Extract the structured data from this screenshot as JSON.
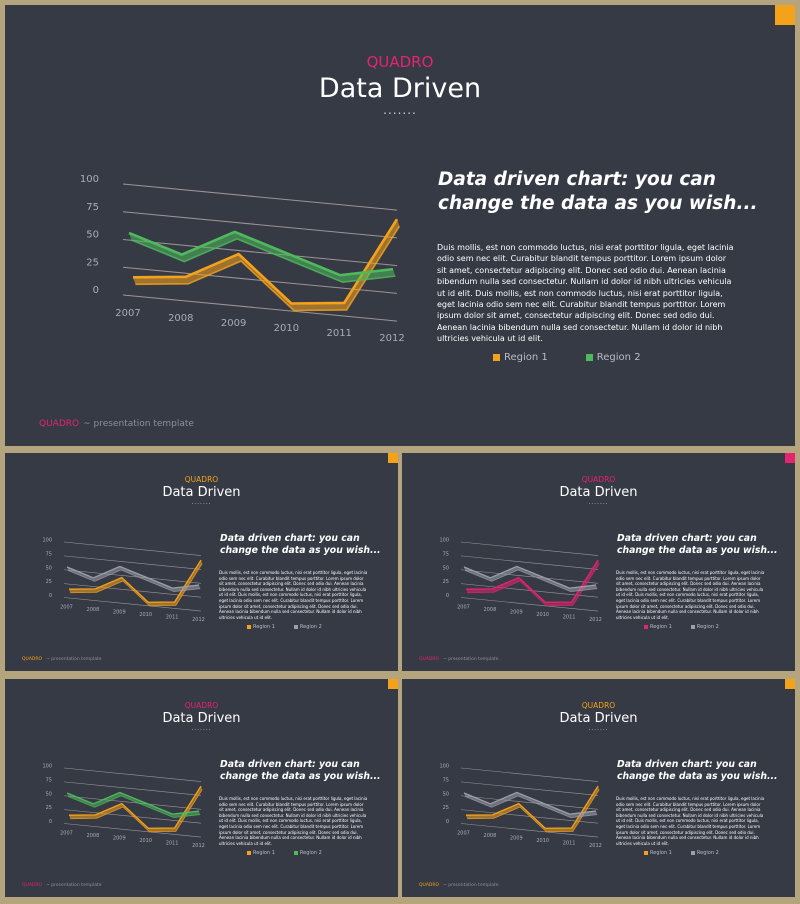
{
  "colors": {
    "background": "#b4a57f",
    "slide_bg": "#363a45",
    "orange": "#f5a21b",
    "green": "#4fba5c",
    "pink": "#e6236f",
    "grey": "#9c9fa7",
    "axis": "#c9b9b9"
  },
  "main_slide": {
    "brand": "QUADRO",
    "title": "Data Driven",
    "dots": ".......",
    "heading": "Data driven chart: you can change the data as you wish...",
    "body": "Duis mollis, est non commodo luctus, nisi erat porttitor ligula, eget lacinia odio sem nec elit. Curabitur blandit tempus porttitor. Lorem ipsum dolor sit amet, consectetur adipiscing elit. Donec sed odio dui. Aenean lacinia bibendum nulla sed consectetur. Nullam id dolor id nibh ultricies vehicula ut id elit. Duis mollis, est non commodo luctus, nisi erat porttitor ligula, eget lacinia odio sem nec elit. Curabitur blandit tempus porttitor. Lorem ipsum dolor sit amet, consectetur adipiscing elit. Donec sed odio dui. Aenean lacinia bibendum nulla sed consectetur. Nullam id dolor id nibh ultricies vehicula ut id elit.",
    "legend": [
      "Region 1",
      "Region 2"
    ],
    "footer_brand": "QUADRO",
    "footer_text": "~ presentation template"
  },
  "thumbnails": [
    {
      "brand_color": "#f5a21b",
      "region1_color": "#f5a21b",
      "region2_color": "#9c9fa7"
    },
    {
      "brand_color": "#e6236f",
      "region1_color": "#e6236f",
      "region2_color": "#9c9fa7"
    },
    {
      "brand_color": "#e6236f",
      "region1_color": "#f5a21b",
      "region2_color": "#4fba5c"
    },
    {
      "brand_color": "#f5a21b",
      "region1_color": "#f5a21b",
      "region2_color": "#9c9fa7"
    }
  ],
  "chart_data": {
    "type": "line",
    "categories": [
      "2007",
      "2008",
      "2009",
      "2010",
      "2011",
      "2012"
    ],
    "series": [
      {
        "name": "Region 1",
        "values": [
          15,
          20,
          45,
          5,
          10,
          90
        ]
      },
      {
        "name": "Region 2",
        "values": [
          55,
          40,
          65,
          50,
          35,
          45
        ]
      }
    ],
    "yticks": [
      "100",
      "75",
      "50",
      "25",
      "0"
    ],
    "ylim": [
      0,
      100
    ],
    "grid": true,
    "legend_position": "bottom"
  }
}
